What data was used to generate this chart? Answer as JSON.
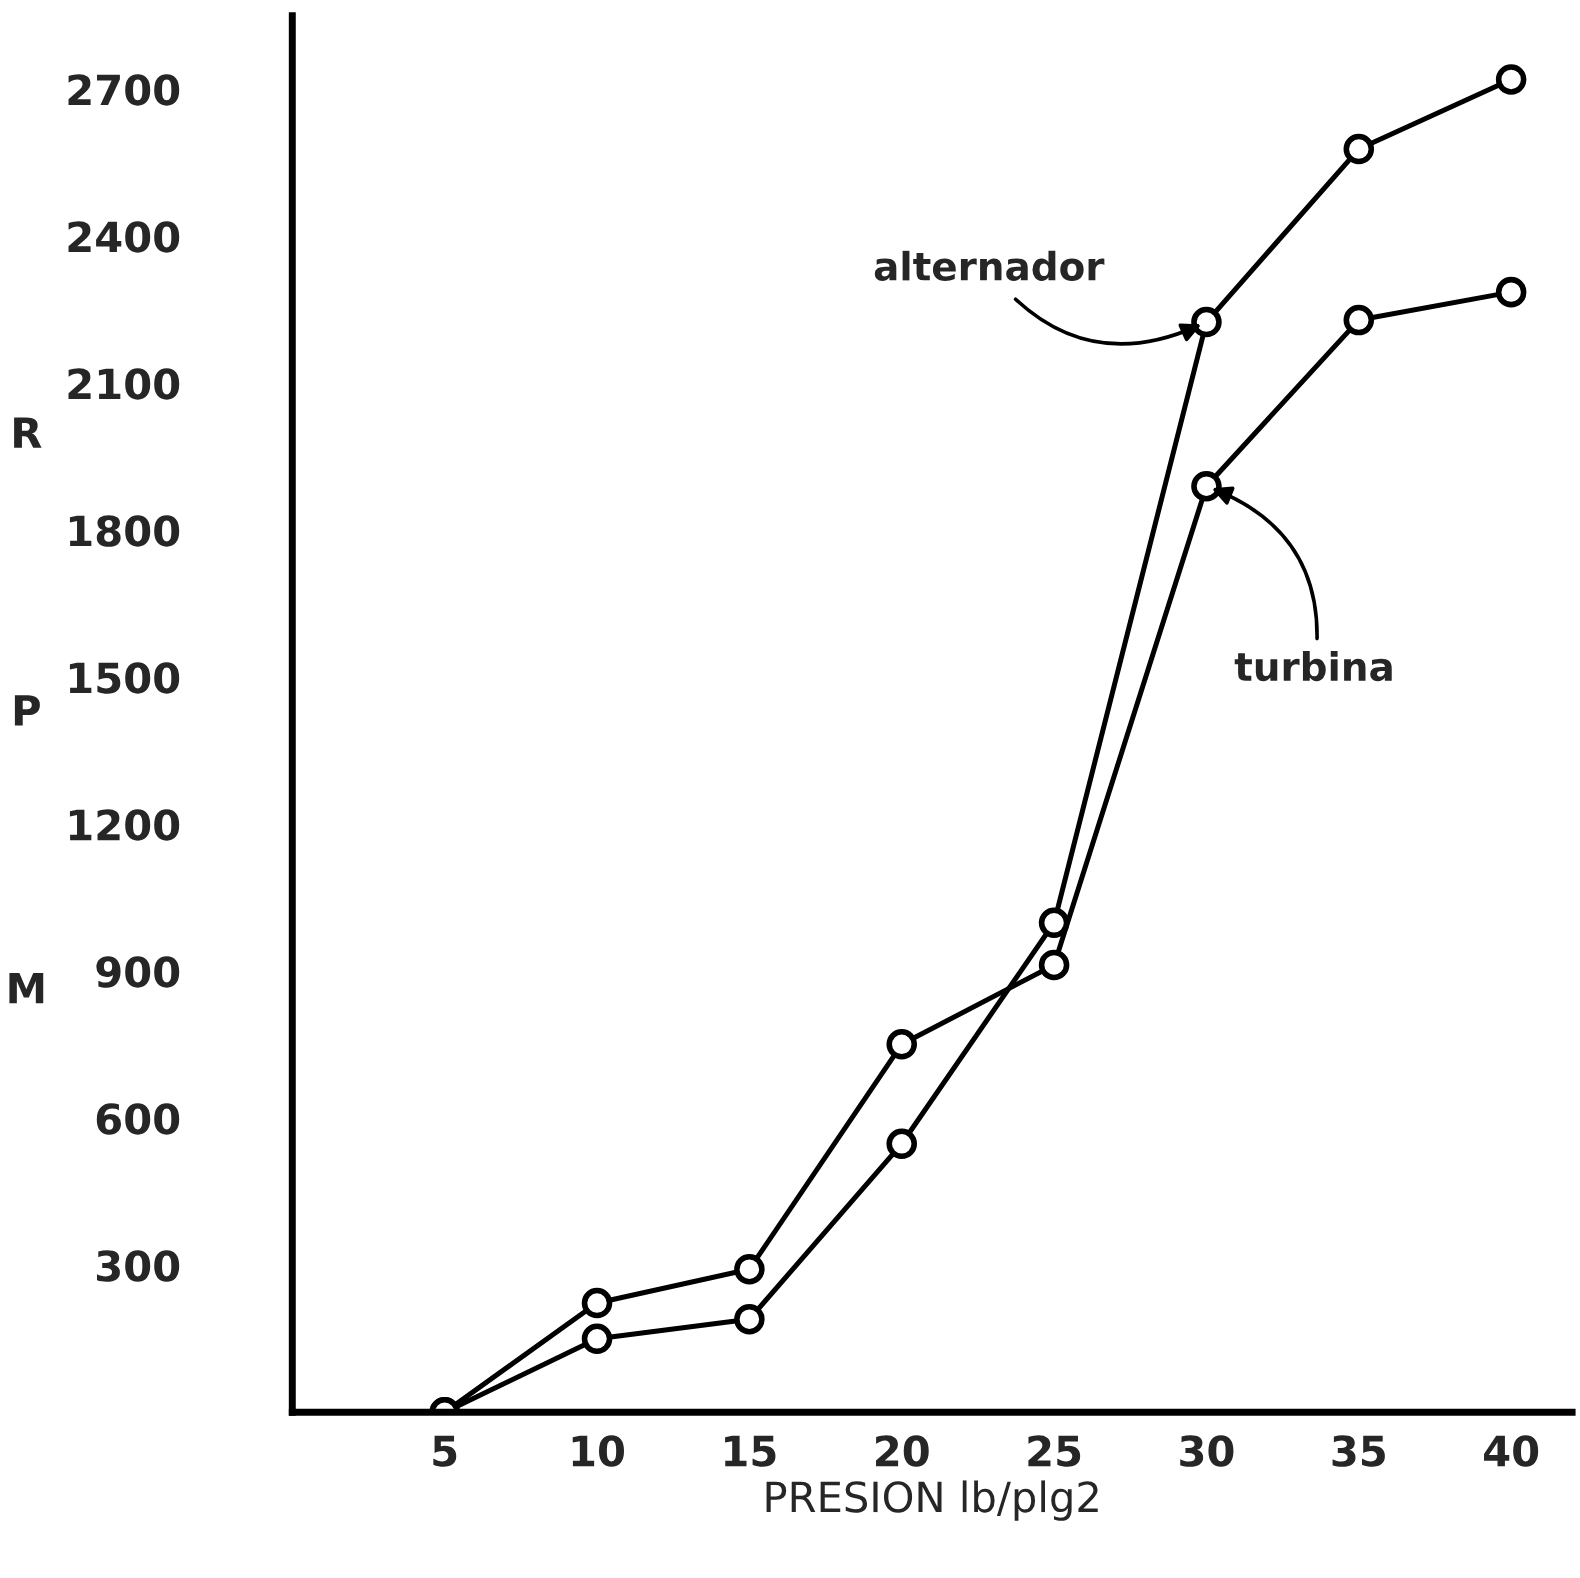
{
  "chart_data": {
    "type": "line",
    "xlabel": "PRESION lb/plg2",
    "ylabel": "RPM",
    "x": [
      5,
      10,
      15,
      20,
      25,
      30,
      35,
      40
    ],
    "series": [
      {
        "color": "#000000",
        "values": [
          0,
          150,
          190,
          548,
          999,
          2225,
          2578,
          2720
        ]
      },
      {
        "color": "#000000",
        "values": [
          0,
          223,
          292,
          751,
          913,
          1890,
          2229,
          2286
        ]
      }
    ],
    "annotations": [
      {
        "text": "alternador",
        "x": 30,
        "y": 2225
      },
      {
        "text": "turbina",
        "x": 30,
        "y": 1890
      }
    ],
    "xlim": [
      0,
      42
    ],
    "ylim": [
      0,
      2850
    ],
    "xticks": [
      5,
      10,
      15,
      20,
      25,
      30,
      35,
      40
    ],
    "yticks": [
      300,
      600,
      900,
      1200,
      1500,
      1800,
      2100,
      2400,
      2700
    ],
    "marker": "circle",
    "line_style": "solid",
    "grid": false,
    "legend": false
  }
}
